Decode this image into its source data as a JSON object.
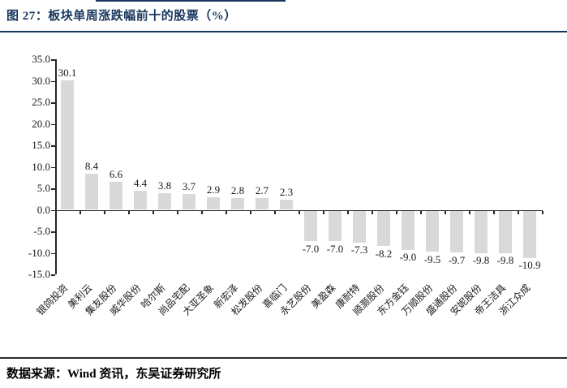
{
  "header": {
    "title": "图 27：板块单周涨跌幅前十的股票（%）"
  },
  "footer": {
    "source": "数据来源：Wind 资讯，东吴证券研究所"
  },
  "colors": {
    "title_accent": "#17365D",
    "bar": "#D9D9D9",
    "axis": "#262626",
    "label_text": "#1a1a1a"
  },
  "chart_data": {
    "type": "bar",
    "title": "板块单周涨跌幅前十的股票（%）",
    "categories": [
      "银鸽投资",
      "美利云",
      "集友股份",
      "威华股份",
      "哈尔斯",
      "尚品宅配",
      "大亚圣象",
      "新宏泽",
      "松发股份",
      "喜临门",
      "永艺股份",
      "美盈森",
      "康耐特",
      "顺灏股份",
      "东方金钰",
      "万顺股份",
      "盛通股份",
      "安妮股份",
      "帝王洁具",
      "浙江众成"
    ],
    "values": [
      30.1,
      8.4,
      6.6,
      4.4,
      3.8,
      3.7,
      2.9,
      2.8,
      2.7,
      2.3,
      -7.0,
      -7.0,
      -7.3,
      -8.2,
      -9.0,
      -9.5,
      -9.7,
      -9.8,
      -9.8,
      -10.9
    ],
    "ylim": [
      -15.0,
      35.0
    ],
    "ytick_step": 5.0,
    "yticks": [
      35.0,
      30.0,
      25.0,
      20.0,
      15.0,
      10.0,
      5.0,
      0.0,
      -5.0,
      -10.0,
      -15.0
    ],
    "data_labels": true,
    "grid": false,
    "legend": false,
    "x_label_rotation_deg": 45,
    "bar_color": "#D9D9D9"
  }
}
